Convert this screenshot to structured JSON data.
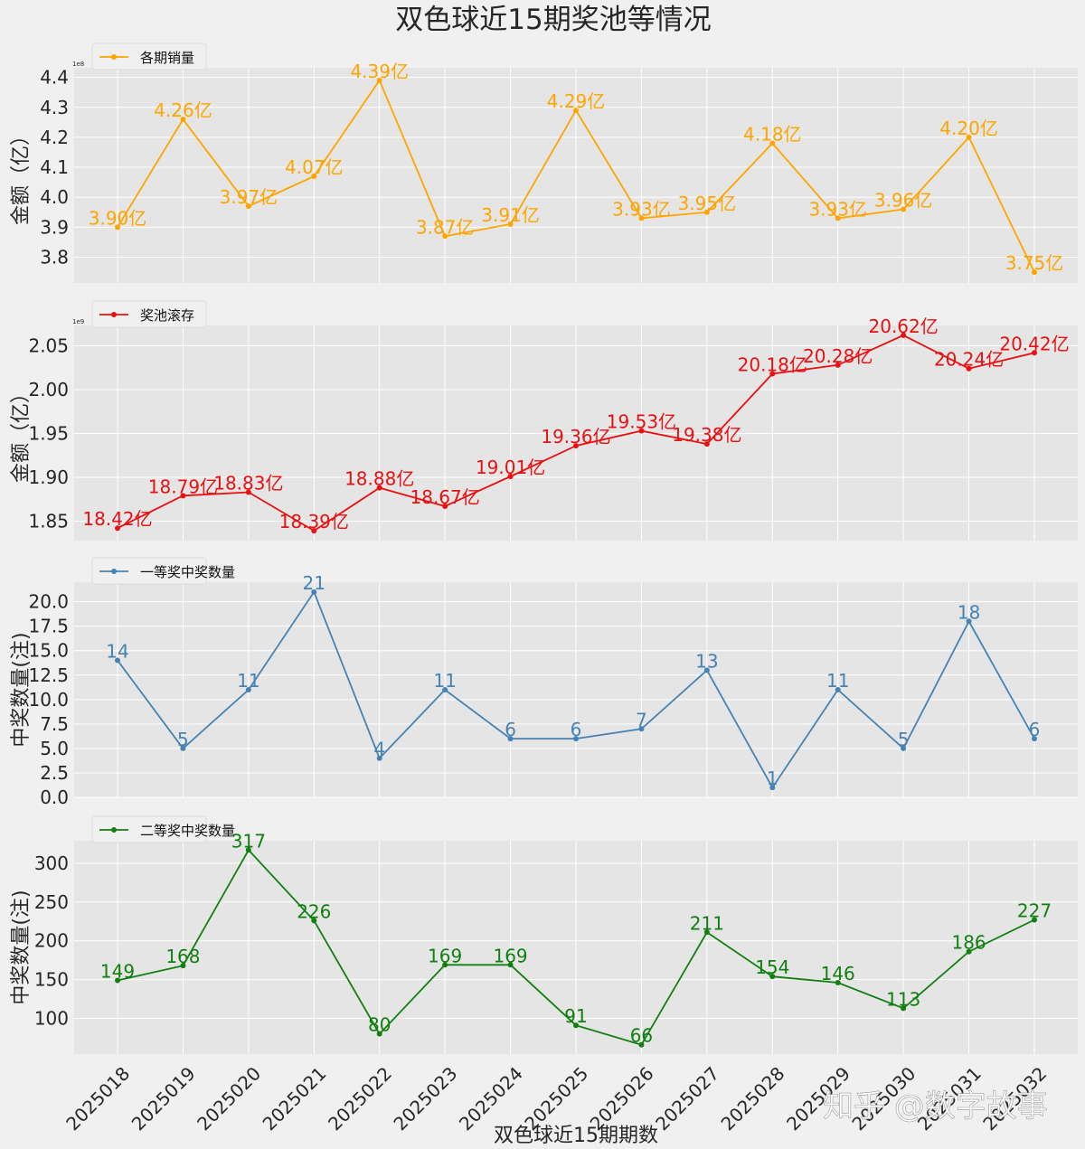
{
  "figure": {
    "title": "双色球近15期奖池等情况",
    "xlabel": "双色球近15期期数",
    "watermark": "知乎 @数字故事"
  },
  "colors": {
    "background": "#f0f0f0",
    "axes_bg": "#e5e5e5",
    "grid": "#ffffff",
    "text": "#262626"
  },
  "chart_data": [
    {
      "type": "line",
      "series": [
        {
          "name": "各期销量",
          "values": [
            3.9,
            4.26,
            3.97,
            4.07,
            4.39,
            3.87,
            3.91,
            4.29,
            3.93,
            3.95,
            4.18,
            3.93,
            3.96,
            4.2,
            3.75
          ]
        }
      ],
      "categories": [
        "2025018",
        "2025019",
        "2025020",
        "2025021",
        "2025022",
        "2025023",
        "2025024",
        "2025025",
        "2025026",
        "2025027",
        "2025028",
        "2025029",
        "2025030",
        "2025031",
        "2025032"
      ],
      "ylabel": "金额（亿）",
      "offset_text": "1e8",
      "labels": [
        "3.90亿",
        "4.26亿",
        "3.97亿",
        "4.07亿",
        "4.39亿",
        "3.87亿",
        "3.91亿",
        "4.29亿",
        "3.93亿",
        "3.95亿",
        "4.18亿",
        "3.93亿",
        "3.96亿",
        "4.20亿",
        "3.75亿"
      ],
      "yticks": [
        3.8,
        3.9,
        4.0,
        4.1,
        4.2,
        4.3,
        4.4
      ],
      "ytick_labels": [
        "3.8",
        "3.9",
        "4.0",
        "4.1",
        "4.2",
        "4.3",
        "4.4"
      ],
      "ylim": [
        3.714,
        4.432
      ],
      "color": "#ffa500",
      "grid": true,
      "legend_loc": "upper-left"
    },
    {
      "type": "line",
      "series": [
        {
          "name": "奖池滚存",
          "values": [
            18.42,
            18.79,
            18.83,
            18.39,
            18.88,
            18.67,
            19.01,
            19.36,
            19.53,
            19.38,
            20.18,
            20.28,
            20.62,
            20.24,
            20.42
          ]
        }
      ],
      "categories": [
        "2025018",
        "2025019",
        "2025020",
        "2025021",
        "2025022",
        "2025023",
        "2025024",
        "2025025",
        "2025026",
        "2025027",
        "2025028",
        "2025029",
        "2025030",
        "2025031",
        "2025032"
      ],
      "ylabel": "金额（亿）",
      "offset_text": "1e9",
      "labels": [
        "18.42亿",
        "18.79亿",
        "18.83亿",
        "18.39亿",
        "18.88亿",
        "18.67亿",
        "19.01亿",
        "19.36亿",
        "19.53亿",
        "19.38亿",
        "20.18亿",
        "20.28亿",
        "20.62亿",
        "20.24亿",
        "20.42亿"
      ],
      "yticks": [
        18.5,
        19.0,
        19.5,
        20.0,
        20.5
      ],
      "ytick_labels": [
        "1.85",
        "1.90",
        "1.95",
        "2.00",
        "2.05"
      ],
      "ylim": [
        18.278,
        20.732
      ],
      "color": "#e81010",
      "grid": true,
      "legend_loc": "upper-left"
    },
    {
      "type": "line",
      "series": [
        {
          "name": "一等奖中奖数量",
          "values": [
            14,
            5,
            11,
            21,
            4,
            11,
            6,
            6,
            7,
            13,
            1,
            11,
            5,
            18,
            6
          ]
        }
      ],
      "categories": [
        "2025018",
        "2025019",
        "2025020",
        "2025021",
        "2025022",
        "2025023",
        "2025024",
        "2025025",
        "2025026",
        "2025027",
        "2025028",
        "2025029",
        "2025030",
        "2025031",
        "2025032"
      ],
      "ylabel": "中奖数量(注)",
      "labels": [
        "14",
        "5",
        "11",
        "21",
        "4",
        "11",
        "6",
        "6",
        "7",
        "13",
        "1",
        "11",
        "5",
        "18",
        "6"
      ],
      "yticks": [
        0,
        2.5,
        5,
        7.5,
        10,
        12.5,
        15,
        17.5,
        20
      ],
      "ytick_labels": [
        "0.0",
        "2.5",
        "5.0",
        "7.5",
        "10.0",
        "12.5",
        "15.0",
        "17.5",
        "20.0"
      ],
      "ylim": [
        0,
        22
      ],
      "color": "#4682b4",
      "grid": true,
      "legend_loc": "upper-left"
    },
    {
      "type": "line",
      "series": [
        {
          "name": "二等奖中奖数量",
          "values": [
            149,
            168,
            317,
            226,
            80,
            169,
            169,
            91,
            66,
            211,
            154,
            146,
            113,
            186,
            227
          ]
        }
      ],
      "categories": [
        "2025018",
        "2025019",
        "2025020",
        "2025021",
        "2025022",
        "2025023",
        "2025024",
        "2025025",
        "2025026",
        "2025027",
        "2025028",
        "2025029",
        "2025030",
        "2025031",
        "2025032"
      ],
      "ylabel": "中奖数量(注)",
      "labels": [
        "149",
        "168",
        "317",
        "226",
        "80",
        "169",
        "169",
        "91",
        "66",
        "211",
        "154",
        "146",
        "113",
        "186",
        "227"
      ],
      "yticks": [
        100,
        150,
        200,
        250,
        300
      ],
      "ytick_labels": [
        "100",
        "150",
        "200",
        "250",
        "300"
      ],
      "ylim": [
        54,
        329
      ],
      "color": "#118011",
      "grid": true,
      "legend_loc": "upper-left"
    }
  ]
}
